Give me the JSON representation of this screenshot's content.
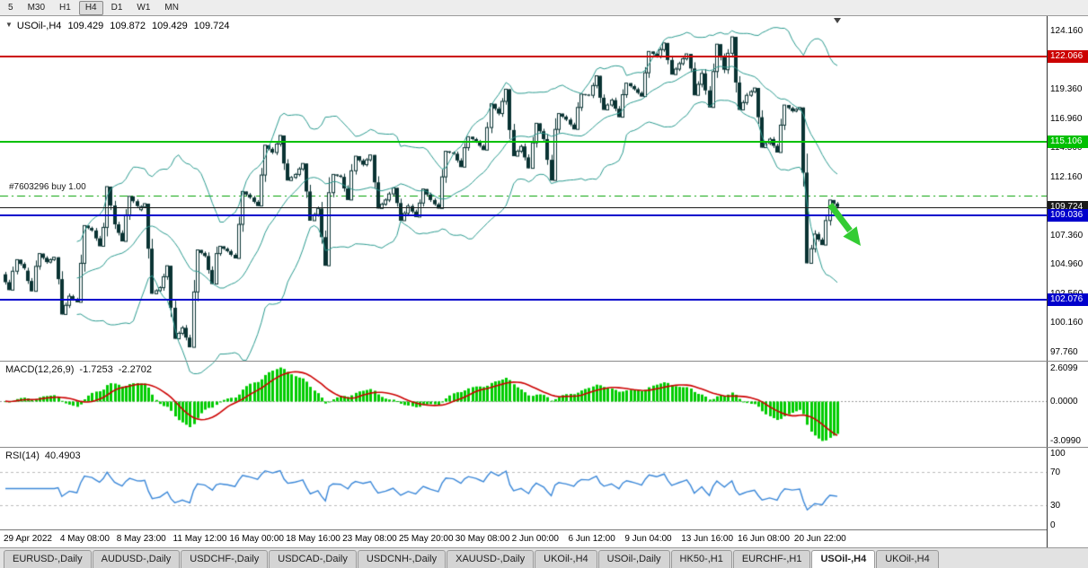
{
  "toolbar": {
    "timeframes": [
      {
        "label": "5",
        "active": false
      },
      {
        "label": "M30",
        "active": false
      },
      {
        "label": "H1",
        "active": false
      },
      {
        "label": "H4",
        "active": true
      },
      {
        "label": "D1",
        "active": false
      },
      {
        "label": "W1",
        "active": false
      },
      {
        "label": "MN",
        "active": false
      }
    ]
  },
  "chart": {
    "info": {
      "symbol_period": "USOil-,H4",
      "open": "109.429",
      "high": "109.872",
      "low": "109.429",
      "close": "109.724"
    },
    "order_label": "#7603296 buy 1.00",
    "order_line": {
      "price": 110.65,
      "color": "#00a000"
    },
    "levels": [
      {
        "id": "resistance-red",
        "label": "122.066",
        "price": 122.066,
        "color": "#cc0000",
        "thickness": 2
      },
      {
        "id": "support-green",
        "label": "115.106",
        "price": 115.106,
        "color": "#00c000",
        "thickness": 2
      },
      {
        "id": "current-price",
        "label": "109.724",
        "price": 109.724,
        "color": "#1a1a1a",
        "thickness": 1
      },
      {
        "id": "support-blue-1",
        "label": "109.036",
        "price": 109.036,
        "color": "#0000cc",
        "thickness": 2
      },
      {
        "id": "support-blue-2",
        "label": "102.076",
        "price": 102.076,
        "color": "#0000cc",
        "thickness": 2
      }
    ],
    "scale_labels": [
      "124.160",
      "121.760",
      "119.360",
      "116.960",
      "114.560",
      "112.160",
      "109.760",
      "107.360",
      "104.960",
      "102.560",
      "100.160",
      "97.760"
    ],
    "time_labels": [
      "29 Apr 2022",
      "4 May 08:00",
      "8 May 23:00",
      "11 May 12:00",
      "16 May 00:00",
      "18 May 16:00",
      "23 May 08:00",
      "25 May 20:00",
      "30 May 08:00",
      "2 Jun 00:00",
      "6 Jun 12:00",
      "9 Jun 04:00",
      "13 Jun 16:00",
      "16 Jun 08:00",
      "20 Jun 22:00"
    ]
  },
  "indicators": {
    "macd": {
      "name": "MACD(12,26,9)",
      "main_value": "-1.7253",
      "signal_value": "-2.2702",
      "scale": [
        "2.6099",
        "0.0000",
        "-3.0990"
      ]
    },
    "rsi": {
      "name": "RSI(14)",
      "value": "40.4903",
      "scale": [
        "100",
        "70",
        "30",
        "0"
      ],
      "levels": [
        70,
        30
      ]
    }
  },
  "tabs": [
    {
      "label": "EURUSD-,Daily",
      "active": false
    },
    {
      "label": "AUDUSD-,Daily",
      "active": false
    },
    {
      "label": "USDCHF-,Daily",
      "active": false
    },
    {
      "label": "USDCAD-,Daily",
      "active": false
    },
    {
      "label": "USDCNH-,Daily",
      "active": false
    },
    {
      "label": "XAUUSD-,Daily",
      "active": false
    },
    {
      "label": "UKOil-,H4",
      "active": false
    },
    {
      "label": "USOil-,Daily",
      "active": false
    },
    {
      "label": "HK50-,H1",
      "active": false
    },
    {
      "label": "EURCHF-,H1",
      "active": false
    },
    {
      "label": "USOil-,H4",
      "active": true
    },
    {
      "label": "UKOil-,H4",
      "active": false
    }
  ],
  "colors": {
    "candle": "#0a3333",
    "bull_fill": "#ffffff",
    "bollinger": "#2a9a8f",
    "macd_hist": "#00cc00",
    "macd_signal": "#cc0000",
    "rsi_line": "#3a87d8",
    "arrow": "#33cc33"
  },
  "chart_data": {
    "type": "candlestick",
    "symbol": "USOil-",
    "timeframe": "H4",
    "overlays": [
      "Bollinger Bands (20,2)",
      "MACD(12,26,9)",
      "RSI(14)"
    ],
    "price_axis_range": [
      97.1,
      125.4
    ],
    "days_format": [
      "date",
      "open",
      "high",
      "low",
      "close"
    ],
    "days": [
      [
        "29 Apr",
        104.2,
        105.4,
        102.9,
        104.7
      ],
      [
        "2 May",
        104.5,
        105.9,
        102.8,
        105.2
      ],
      [
        "3 May",
        105.2,
        105.6,
        100.9,
        102.4
      ],
      [
        "4 May",
        102.4,
        108.2,
        101.9,
        107.8
      ],
      [
        "5 May",
        107.8,
        111.4,
        106.5,
        108.3
      ],
      [
        "6 May",
        108.3,
        110.6,
        106.9,
        109.8
      ],
      [
        "9 May",
        109.5,
        110.0,
        102.6,
        103.1
      ],
      [
        "10 May",
        103.1,
        104.9,
        98.9,
        99.8
      ],
      [
        "11 May",
        99.8,
        106.2,
        98.2,
        105.7
      ],
      [
        "12 May",
        105.7,
        106.5,
        103.4,
        106.1
      ],
      [
        "13 May",
        106.1,
        111.0,
        105.5,
        110.5
      ],
      [
        "16 May",
        110.5,
        114.8,
        109.8,
        114.2
      ],
      [
        "17 May",
        114.2,
        115.6,
        111.9,
        112.4
      ],
      [
        "18 May",
        112.4,
        113.3,
        108.6,
        109.6
      ],
      [
        "19 May",
        109.6,
        112.4,
        104.9,
        112.2
      ],
      [
        "20 May",
        112.2,
        113.9,
        110.3,
        113.2
      ],
      [
        "23 May",
        113.2,
        114.0,
        109.6,
        110.3
      ],
      [
        "24 May",
        110.3,
        111.3,
        108.6,
        109.8
      ],
      [
        "25 May",
        109.8,
        111.2,
        108.9,
        110.3
      ],
      [
        "26 May",
        110.3,
        114.3,
        109.6,
        114.1
      ],
      [
        "27 May",
        114.1,
        115.5,
        113.0,
        115.1
      ],
      [
        "30 May",
        115.1,
        118.2,
        114.4,
        117.4
      ],
      [
        "31 May",
        117.4,
        119.4,
        113.9,
        114.7
      ],
      [
        "1 Jun",
        114.7,
        116.6,
        112.9,
        115.3
      ],
      [
        "2 Jun",
        115.3,
        117.4,
        111.9,
        116.9
      ],
      [
        "3 Jun",
        116.9,
        119.0,
        116.1,
        118.9
      ],
      [
        "6 Jun",
        118.9,
        120.5,
        117.7,
        118.5
      ],
      [
        "7 Jun",
        118.5,
        119.9,
        117.1,
        119.4
      ],
      [
        "8 Jun",
        119.4,
        122.5,
        118.8,
        122.1
      ],
      [
        "9 Jun",
        122.1,
        123.2,
        120.6,
        121.5
      ],
      [
        "10 Jun",
        121.5,
        122.3,
        118.9,
        120.7
      ],
      [
        "13 Jun",
        120.7,
        123.1,
        117.9,
        121.0
      ],
      [
        "14 Jun",
        121.0,
        123.7,
        117.7,
        118.9
      ],
      [
        "15 Jun",
        118.9,
        119.5,
        114.6,
        115.3
      ],
      [
        "16 Jun",
        115.3,
        118.1,
        114.2,
        117.6
      ],
      [
        "17 Jun",
        117.6,
        117.9,
        105.1,
        107.5
      ],
      [
        "20 Jun",
        107.5,
        110.3,
        106.6,
        109.724
      ]
    ]
  }
}
